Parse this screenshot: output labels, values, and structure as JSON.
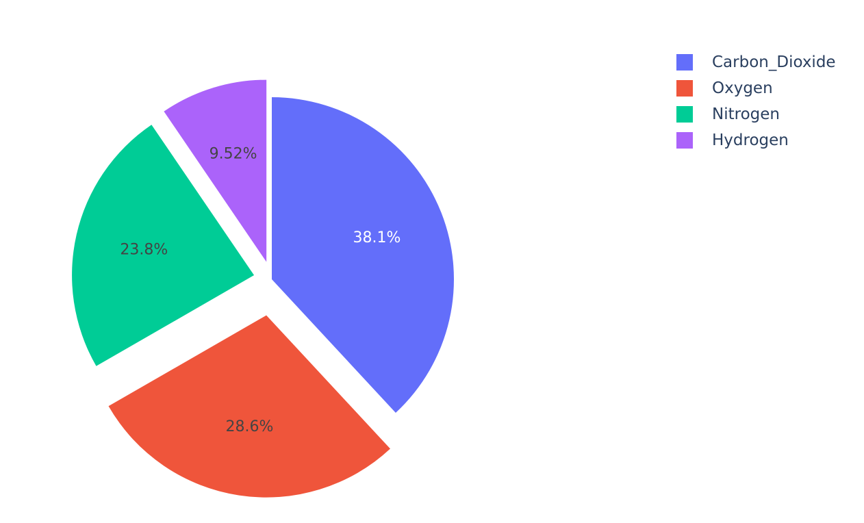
{
  "chart_data": {
    "type": "pie",
    "title": "",
    "labels": [
      "Carbon_Dioxide",
      "Oxygen",
      "Nitrogen",
      "Hydrogen"
    ],
    "values": [
      38.1,
      28.6,
      23.8,
      9.52
    ],
    "value_labels": [
      "38.1%",
      "28.6%",
      "23.8%",
      "9.52%"
    ],
    "colors": [
      "#636efa",
      "#EF553B",
      "#00cc96",
      "#ab63fa"
    ],
    "pull": [
      0,
      0.2,
      0.1,
      0.1
    ],
    "direction": "clockwise",
    "start_angle_deg": 90,
    "legend": {
      "placement": "top-right",
      "items": [
        {
          "label": "Carbon_Dioxide",
          "color": "#636efa"
        },
        {
          "label": "Oxygen",
          "color": "#EF553B"
        },
        {
          "label": "Nitrogen",
          "color": "#00cc96"
        },
        {
          "label": "Hydrogen",
          "color": "#ab63fa"
        }
      ]
    }
  }
}
